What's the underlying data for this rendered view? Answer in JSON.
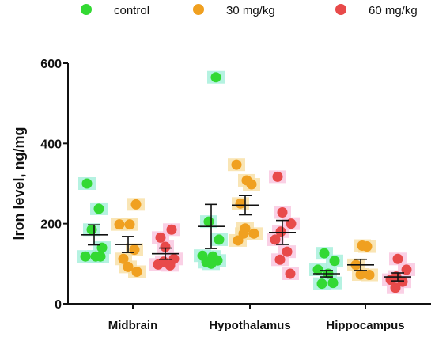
{
  "chart_data": {
    "type": "scatter",
    "ylabel": "Iron level, ng/mg",
    "ylim": [
      0,
      600
    ],
    "yticks": [
      "0",
      "200",
      "400",
      "600"
    ],
    "categories": [
      "Midbrain",
      "Hypothalamus",
      "Hippocampus"
    ],
    "legend_position": "top",
    "series": [
      {
        "name": "control",
        "color": "#33d933",
        "shade": "#a8f0dc",
        "points": [
          [
            300,
            237,
            185,
            140,
            118,
            118,
            118
          ],
          [
            565,
            205,
            160,
            120,
            118,
            108,
            104,
            100
          ],
          [
            126,
            107,
            85,
            75,
            52,
            50
          ]
        ],
        "mean": [
          172,
          193,
          75
        ],
        "sem": [
          25,
          55,
          8
        ]
      },
      {
        "name": "30 mg/kg",
        "color": "#f0a020",
        "shade": "#f8e0a8",
        "points": [
          [
            248,
            198,
            198,
            135,
            112,
            92,
            80
          ],
          [
            347,
            308,
            298,
            250,
            188,
            175,
            175,
            158
          ],
          [
            145,
            143,
            97,
            73,
            72
          ]
        ],
        "mean": [
          148,
          246,
          97
        ],
        "sem": [
          20,
          24,
          14
        ]
      },
      {
        "name": "60 mg/kg",
        "color": "#e84a4a",
        "shade": "#f9c8e0",
        "points": [
          [
            185,
            165,
            142,
            112,
            105,
            98,
            96
          ],
          [
            317,
            228,
            200,
            180,
            160,
            130,
            110,
            75
          ],
          [
            112,
            85,
            68,
            60,
            55,
            40
          ]
        ],
        "mean": [
          125,
          178,
          67
        ],
        "sem": [
          14,
          30,
          10
        ]
      }
    ]
  }
}
